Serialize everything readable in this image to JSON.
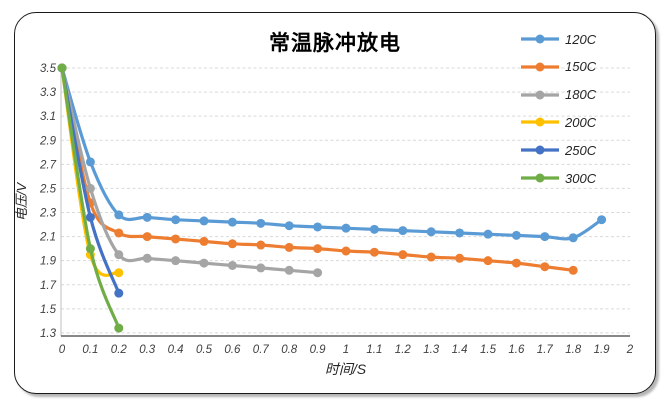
{
  "chart_data": {
    "type": "line",
    "title": "常温脉冲放电",
    "xlabel": "时间/S",
    "ylabel": "电压/V",
    "xlim": [
      0,
      2
    ],
    "ylim": [
      1.3,
      3.5
    ],
    "grid": "horizontal-dashed",
    "legend_position": "top-right",
    "xticks": [
      "0",
      "0.1",
      "0.2",
      "0.3",
      "0.4",
      "0.5",
      "0.6",
      "0.7",
      "0.8",
      "0.9",
      "1",
      "1.1",
      "1.2",
      "1.3",
      "1.4",
      "1.5",
      "1.6",
      "1.7",
      "1.8",
      "1.9",
      "2"
    ],
    "yticks": [
      "1.3",
      "1.5",
      "1.7",
      "1.9",
      "2.1",
      "2.3",
      "2.5",
      "2.7",
      "2.9",
      "3.1",
      "3.3",
      "3.5"
    ],
    "x_start": 0,
    "x_step": 0.1,
    "series": [
      {
        "name": "120C",
        "color": "#5B9BD5",
        "values": [
          3.5,
          2.72,
          2.28,
          2.26,
          2.24,
          2.23,
          2.22,
          2.21,
          2.19,
          2.18,
          2.17,
          2.16,
          2.15,
          2.14,
          2.13,
          2.12,
          2.11,
          2.1,
          2.09,
          2.24
        ]
      },
      {
        "name": "150C",
        "color": "#ED7D31",
        "values": [
          3.5,
          2.38,
          2.13,
          2.1,
          2.08,
          2.06,
          2.04,
          2.03,
          2.01,
          2.0,
          1.98,
          1.97,
          1.95,
          1.93,
          1.92,
          1.9,
          1.88,
          1.85,
          1.82
        ]
      },
      {
        "name": "180C",
        "color": "#A5A5A5",
        "values": [
          3.5,
          2.5,
          1.95,
          1.92,
          1.9,
          1.88,
          1.86,
          1.84,
          1.82,
          1.8
        ]
      },
      {
        "name": "200C",
        "color": "#FFC000",
        "values": [
          3.5,
          1.95,
          1.8
        ]
      },
      {
        "name": "250C",
        "color": "#4472C4",
        "values": [
          3.5,
          2.26,
          1.63
        ]
      },
      {
        "name": "300C",
        "color": "#70AD47",
        "values": [
          3.5,
          2.0,
          1.34
        ]
      }
    ],
    "colors": {
      "gridline": "#d9d9d9",
      "y_axis_line": "#bfbfbf",
      "x_axis_line": "#404040",
      "tick_text": "#404040"
    }
  }
}
